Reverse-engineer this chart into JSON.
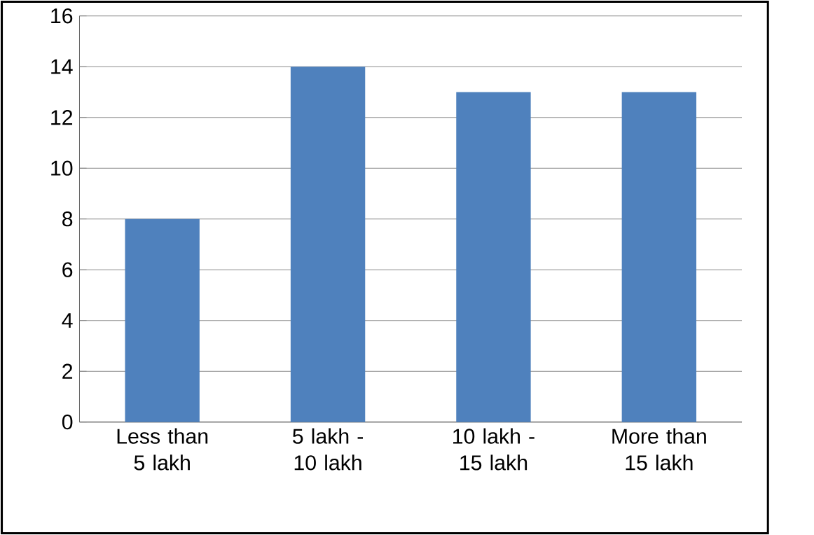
{
  "chart_data": {
    "type": "bar",
    "categories": [
      "Less than 5 lakh",
      "5 lakh - 10 lakh",
      "10 lakh - 15 lakh",
      "More than 15 lakh"
    ],
    "values": [
      8,
      14,
      13,
      13
    ],
    "color": "#4f81bd",
    "ylim": [
      0,
      16
    ],
    "yticks": [
      0,
      2,
      4,
      6,
      8,
      10,
      12,
      14,
      16
    ],
    "grid": "y"
  }
}
